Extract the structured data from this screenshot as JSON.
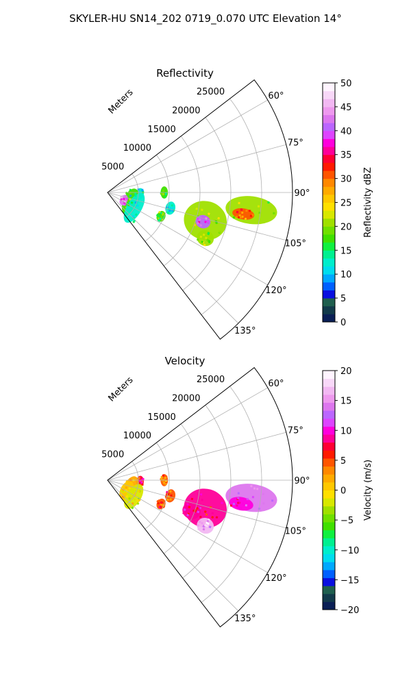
{
  "figure": {
    "title": "SKYLER-HU  SN14_202  0719_0.070 UTC Elevation 14°"
  },
  "chart_data": [
    {
      "type": "heatmap",
      "title": "Reflectivity",
      "radial_label": "Meters",
      "range_ticks": [
        5000,
        10000,
        15000,
        20000,
        25000
      ],
      "range_tick_labels": [
        "5000",
        "10000",
        "15000",
        "20000",
        "25000"
      ],
      "azimuth_ticks": [
        60,
        75,
        90,
        105,
        120,
        135
      ],
      "azimuth_tick_labels": [
        "60°",
        "75°",
        "90°",
        "105°",
        "120°",
        "135°"
      ],
      "azimuth_range": [
        52.5,
        142.5
      ],
      "range_max": 30000,
      "grid": true,
      "colorbar": {
        "label": "Reflectivity dBZ",
        "range": [
          0,
          50
        ],
        "ticks": [
          0,
          5,
          10,
          15,
          20,
          25,
          30,
          35,
          40,
          45,
          50
        ],
        "tick_labels": [
          "0",
          "5",
          "10",
          "15",
          "20",
          "25",
          "30",
          "35",
          "40",
          "45",
          "50"
        ],
        "colors": [
          "#0a1f55",
          "#123a4a",
          "#1f5f4e",
          "#0a0fe0",
          "#0060ff",
          "#00a8ff",
          "#00ddee",
          "#00eecc",
          "#00f090",
          "#10f040",
          "#40e000",
          "#70e000",
          "#a0e000",
          "#d8e800",
          "#ffe000",
          "#ffc800",
          "#ffaa00",
          "#ff8800",
          "#ff5500",
          "#ff1a00",
          "#ff0033",
          "#ff0099",
          "#ff00dd",
          "#dd44ff",
          "#bb66ff",
          "#dd77ee",
          "#ee99ee",
          "#f2b8f2",
          "#f8d8f8",
          "#fff4ff"
        ]
      },
      "echoes": [
        {
          "az": 97,
          "r": 23500,
          "dz": 2500,
          "dr": 4200,
          "value": 20
        },
        {
          "az": 99,
          "r": 22300,
          "dz": 1000,
          "dr": 1800,
          "value": 30
        },
        {
          "az": 106,
          "r": 16500,
          "dz": 3500,
          "dr": 3500,
          "value": 21
        },
        {
          "az": 107,
          "r": 16200,
          "dz": 1200,
          "dr": 1200,
          "value": 40
        },
        {
          "az": 115,
          "r": 17500,
          "dz": 1400,
          "dr": 1400,
          "value": 20
        },
        {
          "az": 114,
          "r": 9500,
          "dz": 1000,
          "dr": 700,
          "value": 18
        },
        {
          "az": 104,
          "r": 10500,
          "dz": 1200,
          "dr": 800,
          "value": 12
        },
        {
          "az": 92,
          "r": 5300,
          "dz": 1000,
          "dr": 600,
          "value": 12
        },
        {
          "az": 90,
          "r": 9200,
          "dz": 1100,
          "dr": 600,
          "value": 18
        },
        {
          "az": 112,
          "r": 4000,
          "dz": 2500,
          "dr": 1200,
          "value": 18
        },
        {
          "az": 115,
          "r": 2900,
          "dz": 1000,
          "dr": 600,
          "value": 42
        },
        {
          "az": 120,
          "r": 5000,
          "dz": 3000,
          "dr": 1200,
          "value": 13
        }
      ]
    },
    {
      "type": "heatmap",
      "title": "Velocity",
      "radial_label": "Meters",
      "range_ticks": [
        5000,
        10000,
        15000,
        20000,
        25000
      ],
      "range_tick_labels": [
        "5000",
        "10000",
        "15000",
        "20000",
        "25000"
      ],
      "azimuth_ticks": [
        60,
        75,
        90,
        105,
        120,
        135
      ],
      "azimuth_tick_labels": [
        "60°",
        "75°",
        "90°",
        "105°",
        "120°",
        "135°"
      ],
      "azimuth_range": [
        52.5,
        142.5
      ],
      "range_max": 30000,
      "grid": true,
      "colorbar": {
        "label": "Velocity (m/s)",
        "range": [
          -20,
          20
        ],
        "ticks": [
          -20,
          -15,
          -10,
          -5,
          0,
          5,
          10,
          15,
          20
        ],
        "tick_labels": [
          "−20",
          "−15",
          "−10",
          "−5",
          "0",
          "5",
          "10",
          "15",
          "20"
        ],
        "colors": [
          "#0a1f55",
          "#123a4a",
          "#1f5f4e",
          "#0a0fe0",
          "#0060ff",
          "#00a8ff",
          "#00ddee",
          "#00eecc",
          "#00f090",
          "#10f040",
          "#40e000",
          "#70e000",
          "#a0e000",
          "#d8e800",
          "#ffe000",
          "#ffc800",
          "#ffaa00",
          "#ff8800",
          "#ff5500",
          "#ff1a00",
          "#ff0033",
          "#ff0099",
          "#ff00dd",
          "#dd44ff",
          "#bb66ff",
          "#dd77ee",
          "#ee99ee",
          "#f2b8f2",
          "#f8d8f8",
          "#fff4ff"
        ]
      },
      "echoes": [
        {
          "az": 97,
          "r": 23500,
          "dz": 2500,
          "dr": 4200,
          "value": 14
        },
        {
          "az": 100,
          "r": 22000,
          "dz": 1200,
          "dr": 2000,
          "value": 10
        },
        {
          "az": 106,
          "r": 16500,
          "dz": 3500,
          "dr": 3500,
          "value": 8
        },
        {
          "az": 110,
          "r": 14500,
          "dz": 1500,
          "dr": 1500,
          "value": 9
        },
        {
          "az": 115,
          "r": 17500,
          "dz": 1400,
          "dr": 1400,
          "value": 16
        },
        {
          "az": 114,
          "r": 9500,
          "dz": 1000,
          "dr": 700,
          "value": 5
        },
        {
          "az": 104,
          "r": 10500,
          "dz": 1200,
          "dr": 800,
          "value": 5
        },
        {
          "az": 92,
          "r": 5300,
          "dz": 1000,
          "dr": 600,
          "value": 7
        },
        {
          "az": 90,
          "r": 9200,
          "dz": 1100,
          "dr": 600,
          "value": 4
        },
        {
          "az": 112,
          "r": 4000,
          "dz": 2500,
          "dr": 1200,
          "value": 2
        },
        {
          "az": 118,
          "r": 3500,
          "dz": 1800,
          "dr": 1000,
          "value": 0
        },
        {
          "az": 122,
          "r": 5000,
          "dz": 2500,
          "dr": 1200,
          "value": -2
        }
      ]
    }
  ]
}
